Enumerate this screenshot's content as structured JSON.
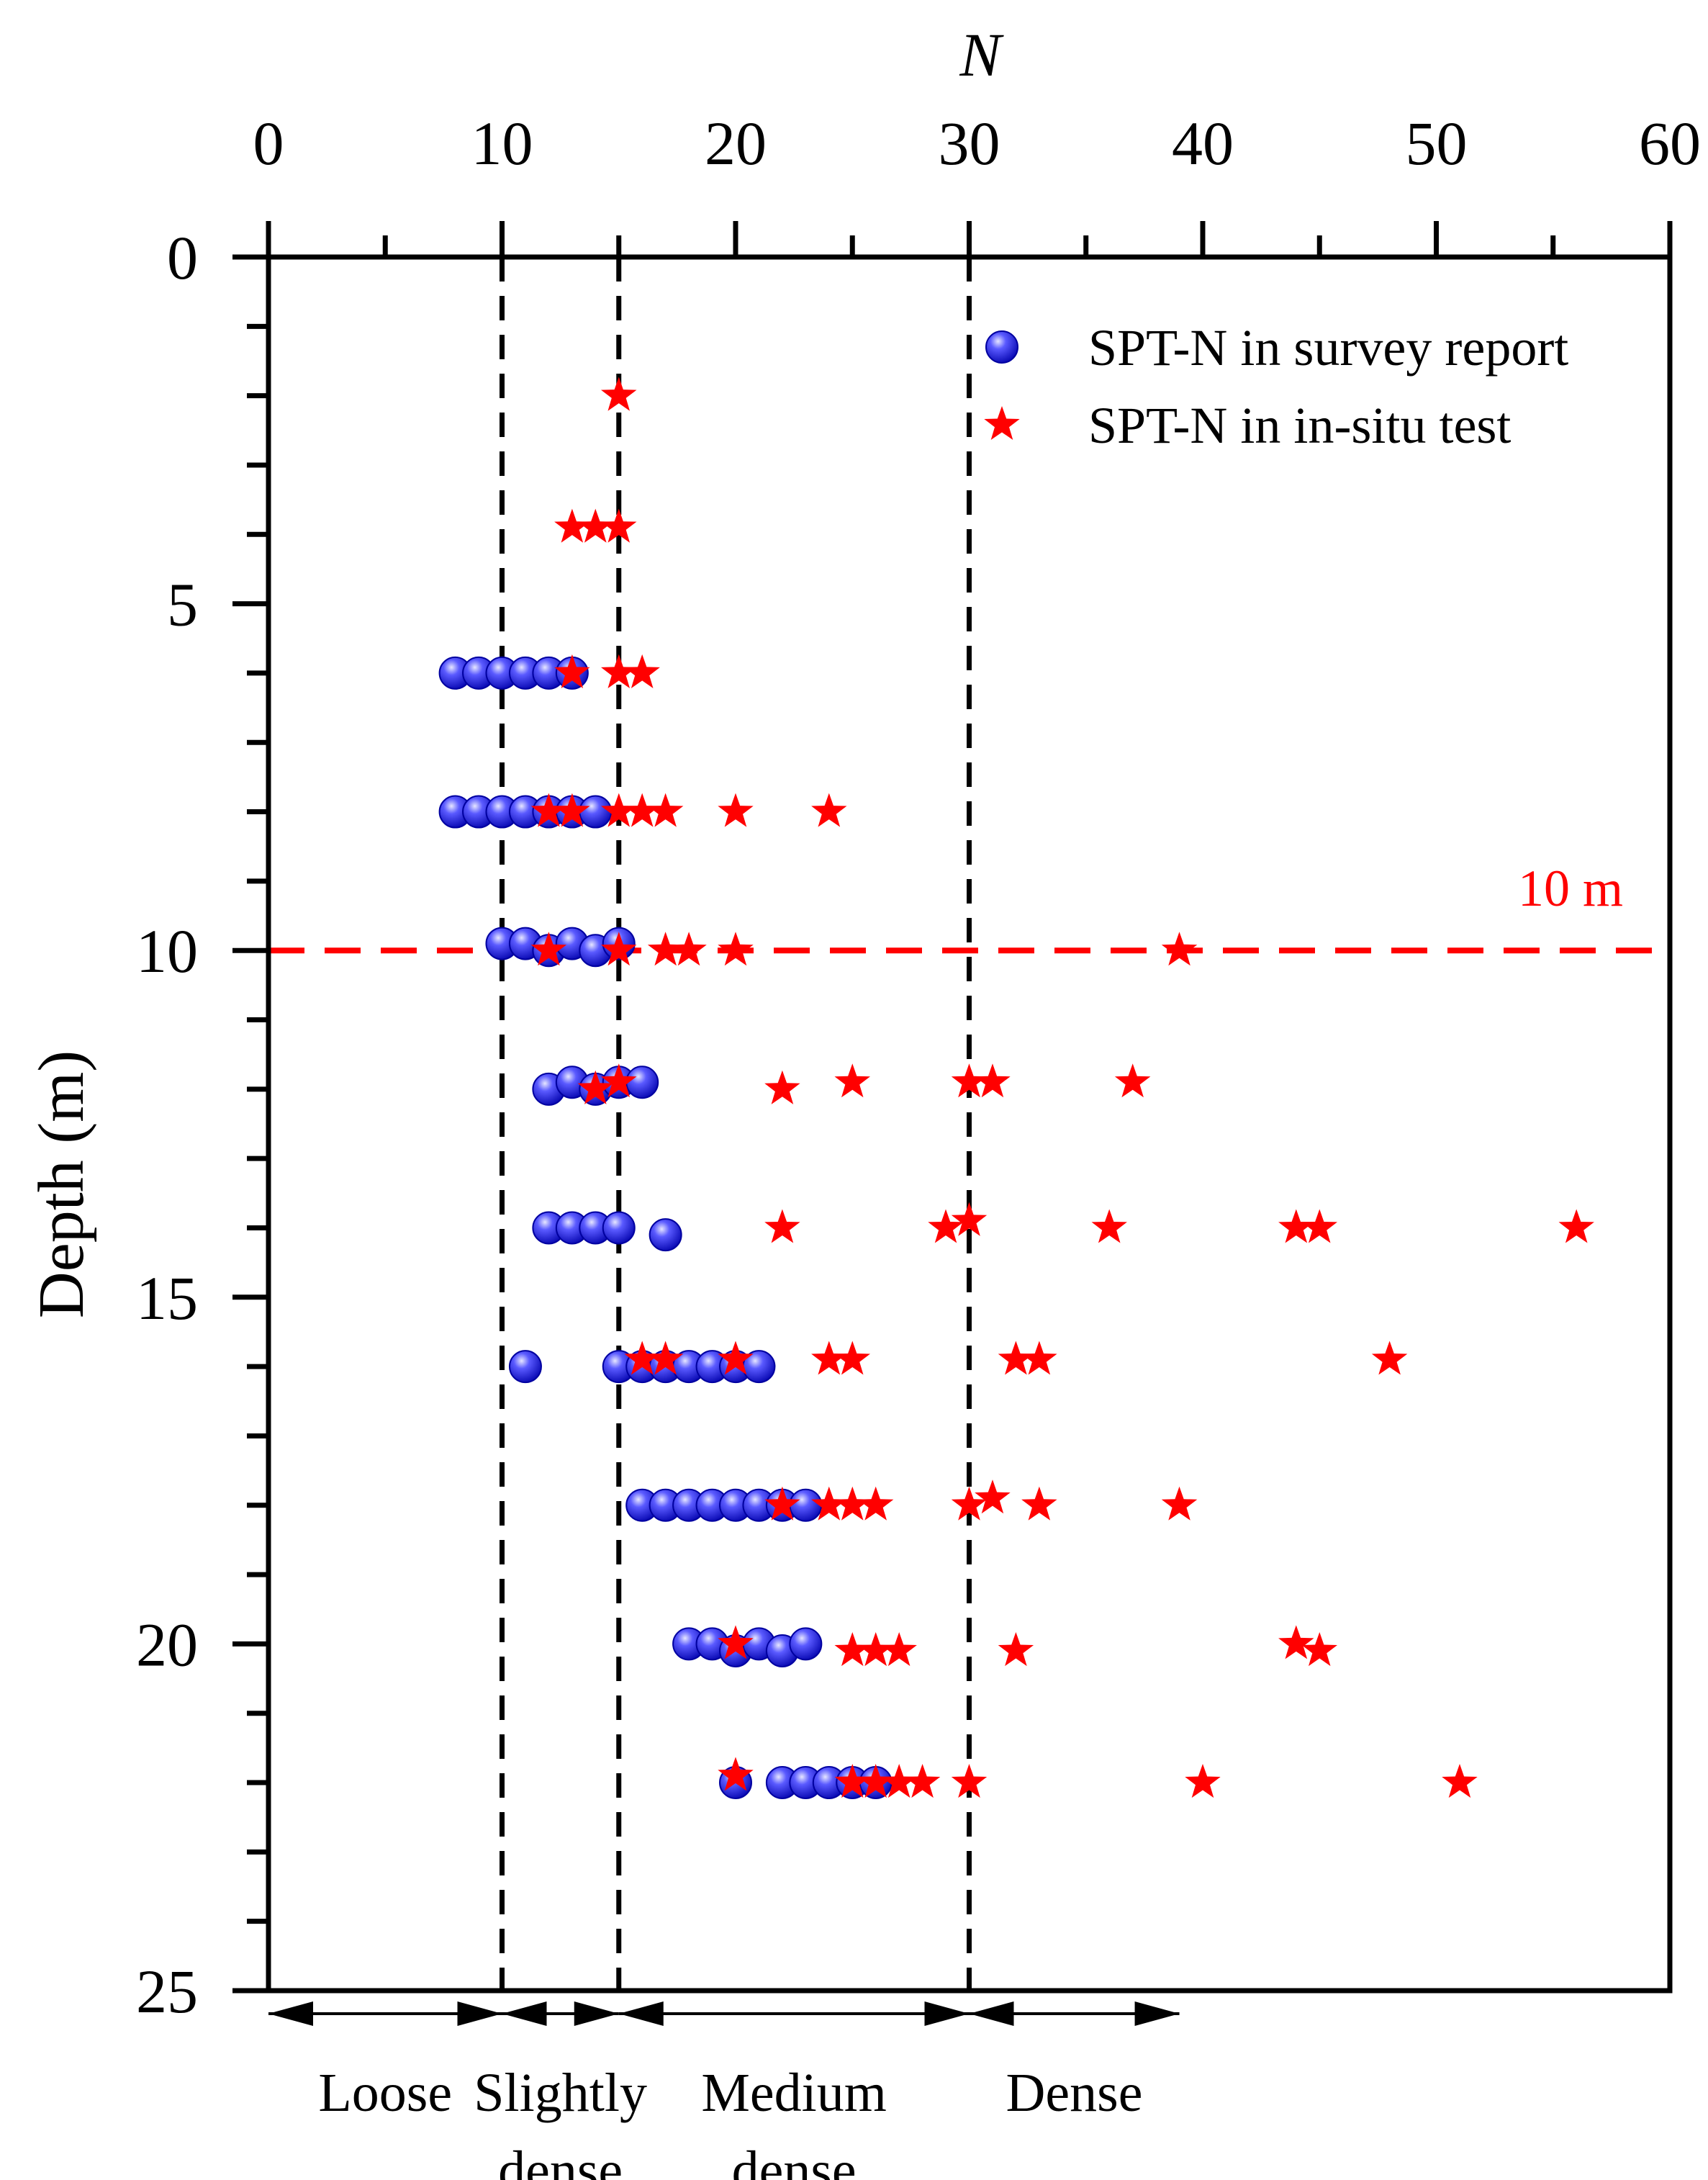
{
  "chart_data": {
    "type": "scatter",
    "title": "",
    "xlabel": "N",
    "ylabel": "Depth (m)",
    "xlim": [
      0,
      60
    ],
    "ylim": [
      0,
      25
    ],
    "x_axis_position": "top",
    "y_axis_inverted": true,
    "x_ticks": [
      0,
      10,
      20,
      30,
      40,
      50,
      60
    ],
    "y_ticks": [
      0,
      5,
      10,
      15,
      20,
      25
    ],
    "legend_position": "top-right",
    "series": [
      {
        "name": "SPT-N in survey report",
        "marker": "circle",
        "color": "#1f1fe0",
        "points": [
          {
            "x": 8,
            "y": 6
          },
          {
            "x": 9,
            "y": 6
          },
          {
            "x": 10,
            "y": 6
          },
          {
            "x": 11,
            "y": 6
          },
          {
            "x": 12,
            "y": 6
          },
          {
            "x": 13,
            "y": 6
          },
          {
            "x": 8,
            "y": 8
          },
          {
            "x": 9,
            "y": 8
          },
          {
            "x": 10,
            "y": 8
          },
          {
            "x": 11,
            "y": 8
          },
          {
            "x": 12,
            "y": 8
          },
          {
            "x": 13,
            "y": 8
          },
          {
            "x": 14,
            "y": 8
          },
          {
            "x": 10,
            "y": 9.9
          },
          {
            "x": 11,
            "y": 9.9
          },
          {
            "x": 12,
            "y": 10
          },
          {
            "x": 13,
            "y": 9.9
          },
          {
            "x": 14,
            "y": 10
          },
          {
            "x": 15,
            "y": 9.9
          },
          {
            "x": 12,
            "y": 12
          },
          {
            "x": 13,
            "y": 11.9
          },
          {
            "x": 14,
            "y": 12
          },
          {
            "x": 15,
            "y": 11.9
          },
          {
            "x": 16,
            "y": 11.9
          },
          {
            "x": 12,
            "y": 14
          },
          {
            "x": 13,
            "y": 14
          },
          {
            "x": 14,
            "y": 14
          },
          {
            "x": 15,
            "y": 14
          },
          {
            "x": 17,
            "y": 14.1
          },
          {
            "x": 11,
            "y": 16
          },
          {
            "x": 15,
            "y": 16
          },
          {
            "x": 16,
            "y": 16
          },
          {
            "x": 17,
            "y": 16
          },
          {
            "x": 18,
            "y": 16
          },
          {
            "x": 19,
            "y": 16
          },
          {
            "x": 20,
            "y": 16
          },
          {
            "x": 21,
            "y": 16
          },
          {
            "x": 16,
            "y": 18
          },
          {
            "x": 17,
            "y": 18
          },
          {
            "x": 18,
            "y": 18
          },
          {
            "x": 19,
            "y": 18
          },
          {
            "x": 20,
            "y": 18
          },
          {
            "x": 21,
            "y": 18
          },
          {
            "x": 22,
            "y": 18
          },
          {
            "x": 23,
            "y": 18
          },
          {
            "x": 18,
            "y": 20
          },
          {
            "x": 19,
            "y": 20
          },
          {
            "x": 20,
            "y": 20.1
          },
          {
            "x": 21,
            "y": 20
          },
          {
            "x": 22,
            "y": 20.1
          },
          {
            "x": 23,
            "y": 20
          },
          {
            "x": 20,
            "y": 22
          },
          {
            "x": 22,
            "y": 22
          },
          {
            "x": 23,
            "y": 22
          },
          {
            "x": 24,
            "y": 22
          },
          {
            "x": 25,
            "y": 22
          },
          {
            "x": 26,
            "y": 22
          }
        ]
      },
      {
        "name": "SPT-N in in-situ test",
        "marker": "star",
        "color": "#ff0000",
        "points": [
          {
            "x": 15,
            "y": 2
          },
          {
            "x": 13,
            "y": 3.9
          },
          {
            "x": 14,
            "y": 3.9
          },
          {
            "x": 15,
            "y": 3.9
          },
          {
            "x": 13,
            "y": 6
          },
          {
            "x": 15,
            "y": 6
          },
          {
            "x": 16,
            "y": 6
          },
          {
            "x": 12,
            "y": 8
          },
          {
            "x": 13,
            "y": 8
          },
          {
            "x": 15,
            "y": 8
          },
          {
            "x": 16,
            "y": 8
          },
          {
            "x": 17,
            "y": 8
          },
          {
            "x": 20,
            "y": 8
          },
          {
            "x": 24,
            "y": 8
          },
          {
            "x": 12,
            "y": 10
          },
          {
            "x": 15,
            "y": 10
          },
          {
            "x": 17,
            "y": 10
          },
          {
            "x": 18,
            "y": 10
          },
          {
            "x": 20,
            "y": 10
          },
          {
            "x": 39,
            "y": 10
          },
          {
            "x": 14,
            "y": 12
          },
          {
            "x": 15,
            "y": 11.9
          },
          {
            "x": 22,
            "y": 12
          },
          {
            "x": 25,
            "y": 11.9
          },
          {
            "x": 30,
            "y": 11.9
          },
          {
            "x": 31,
            "y": 11.9
          },
          {
            "x": 37,
            "y": 11.9
          },
          {
            "x": 22,
            "y": 14
          },
          {
            "x": 29,
            "y": 14
          },
          {
            "x": 30,
            "y": 13.9
          },
          {
            "x": 36,
            "y": 14
          },
          {
            "x": 44,
            "y": 14
          },
          {
            "x": 45,
            "y": 14
          },
          {
            "x": 56,
            "y": 14
          },
          {
            "x": 16,
            "y": 15.9
          },
          {
            "x": 17,
            "y": 15.9
          },
          {
            "x": 20,
            "y": 15.9
          },
          {
            "x": 24,
            "y": 15.9
          },
          {
            "x": 25,
            "y": 15.9
          },
          {
            "x": 32,
            "y": 15.9
          },
          {
            "x": 33,
            "y": 15.9
          },
          {
            "x": 48,
            "y": 15.9
          },
          {
            "x": 22,
            "y": 18
          },
          {
            "x": 24,
            "y": 18
          },
          {
            "x": 25,
            "y": 18
          },
          {
            "x": 26,
            "y": 18
          },
          {
            "x": 30,
            "y": 18
          },
          {
            "x": 31,
            "y": 17.9
          },
          {
            "x": 33,
            "y": 18
          },
          {
            "x": 39,
            "y": 18
          },
          {
            "x": 20,
            "y": 20
          },
          {
            "x": 25,
            "y": 20.1
          },
          {
            "x": 26,
            "y": 20.1
          },
          {
            "x": 27,
            "y": 20.1
          },
          {
            "x": 32,
            "y": 20.1
          },
          {
            "x": 44,
            "y": 20
          },
          {
            "x": 45,
            "y": 20.1
          },
          {
            "x": 20,
            "y": 21.9
          },
          {
            "x": 25,
            "y": 22
          },
          {
            "x": 26,
            "y": 22
          },
          {
            "x": 27,
            "y": 22
          },
          {
            "x": 28,
            "y": 22
          },
          {
            "x": 30,
            "y": 22
          },
          {
            "x": 40,
            "y": 22
          },
          {
            "x": 51,
            "y": 22
          }
        ]
      }
    ],
    "reference_lines": [
      {
        "orientation": "vertical",
        "value": 10,
        "color": "#000000",
        "style": "dashed"
      },
      {
        "orientation": "vertical",
        "value": 15,
        "color": "#000000",
        "style": "dashed"
      },
      {
        "orientation": "vertical",
        "value": 30,
        "color": "#000000",
        "style": "dashed"
      },
      {
        "orientation": "horizontal",
        "value": 10,
        "color": "#ff0000",
        "style": "dashed",
        "label": "10 m"
      }
    ],
    "density_zones": [
      {
        "name": "Loose",
        "lines": [
          "Loose"
        ],
        "from": 0,
        "to": 10
      },
      {
        "name": "Slightly dense",
        "lines": [
          "Slightly",
          "dense"
        ],
        "from": 10,
        "to": 15
      },
      {
        "name": "Medium dense",
        "lines": [
          "Medium",
          "dense"
        ],
        "from": 15,
        "to": 30
      },
      {
        "name": "Dense",
        "lines": [
          "Dense"
        ],
        "from": 30,
        "to": 39
      }
    ]
  }
}
